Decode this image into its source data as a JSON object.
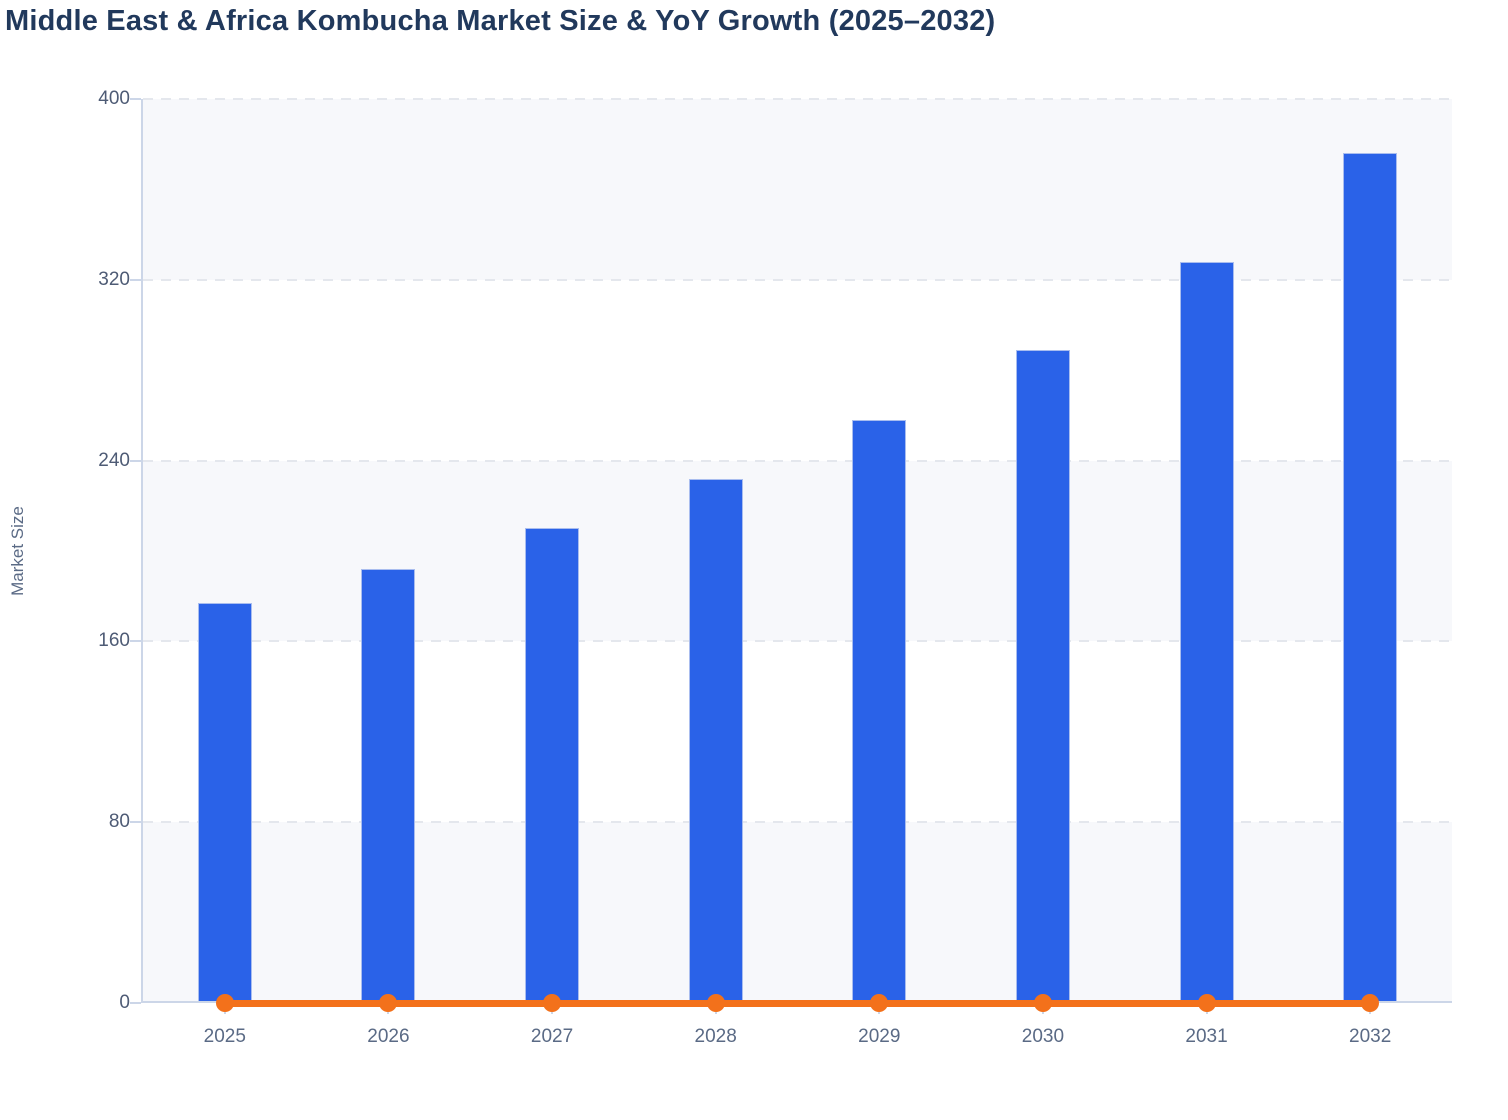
{
  "chart": {
    "title": "Middle East & Africa Kombucha Market Size & YoY Growth (2025–2032)",
    "ylabel": "Market Size"
  },
  "colors": {
    "bar": "#2a62e8",
    "bar_border": "#a9bdef",
    "line": "#f3711b",
    "title": "#21395c",
    "ytick": "#4e5b75",
    "xtick": "#5a6a85",
    "axis_title": "#5a6a85",
    "axis_line": "#ccd6e8",
    "grid": "#e4e7ed",
    "band": "#f7f8fb"
  },
  "chart_data": {
    "type": "bar",
    "title": "Middle East & Africa Kombucha Market Size & YoY Growth (2025–2032)",
    "categories": [
      "2025",
      "2026",
      "2027",
      "2028",
      "2029",
      "2030",
      "2031",
      "2032"
    ],
    "series": [
      {
        "name": "Market Size",
        "type": "bar",
        "color": "#2a62e8",
        "values": [
          177,
          192,
          210,
          232,
          258,
          289,
          328,
          376
        ]
      },
      {
        "name": "YoY Growth",
        "type": "line",
        "color": "#f3711b",
        "values_displayed": [
          0,
          0,
          0,
          0,
          0,
          0,
          0,
          0
        ],
        "note": "Orange line with round markers rendered flat at ~0 on the Market Size axis"
      }
    ],
    "xlabel": "",
    "ylabel": "Market Size",
    "ylim": [
      0,
      400
    ],
    "yticks": [
      0,
      80,
      160,
      240,
      320,
      400
    ],
    "grid": "horizontal dashed gridlines with alternating light plot bands",
    "legend": "none"
  }
}
